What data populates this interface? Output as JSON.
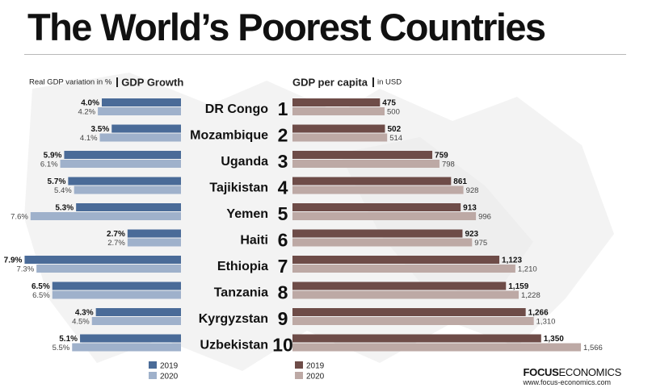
{
  "title": "The World’s Poorest Countries",
  "left_panel": {
    "note": "Real GDP variation in %",
    "header": "GDP Growth"
  },
  "right_panel": {
    "header": "GDP per capita",
    "note": "in USD"
  },
  "legend": {
    "label_2019": "2019",
    "label_2020": "2020"
  },
  "colors": {
    "growth_2019": "#4a6b98",
    "growth_2020": "#9fb1cb",
    "gdp_2019": "#6e4c48",
    "gdp_2020": "#bda9a5"
  },
  "logo": {
    "word_bold": "FOCUS",
    "word_light": "ECONOMICS",
    "url": "www.focus-economics.com"
  },
  "chart_data": [
    {
      "type": "bar",
      "title": "GDP Growth",
      "subtitle": "Real GDP variation in %",
      "categories": [
        "DR Congo",
        "Mozambique",
        "Uganda",
        "Tajikistan",
        "Yemen",
        "Haiti",
        "Ethiopia",
        "Tanzania",
        "Kyrgyzstan",
        "Uzbekistan"
      ],
      "series": [
        {
          "name": "2019",
          "values": [
            4.0,
            3.5,
            5.9,
            5.7,
            5.3,
            2.7,
            7.9,
            6.5,
            4.3,
            5.1
          ],
          "labels": [
            "4.0%",
            "3.5%",
            "5.9%",
            "5.7%",
            "5.3%",
            "2.7%",
            "7.9%",
            "6.5%",
            "4.3%",
            "5.1%"
          ]
        },
        {
          "name": "2020",
          "values": [
            4.2,
            4.1,
            6.1,
            5.4,
            7.6,
            2.7,
            7.3,
            6.5,
            4.5,
            5.5
          ],
          "labels": [
            "4.2%",
            "4.1%",
            "6.1%",
            "5.4%",
            "7.6%",
            "2.7%",
            "7.3%",
            "6.5%",
            "4.5%",
            "5.5%"
          ]
        }
      ],
      "orientation": "horizontal-leftward",
      "legend_position": "bottom-right"
    },
    {
      "type": "bar",
      "title": "GDP per capita",
      "subtitle": "in USD",
      "ranks": [
        "1",
        "2",
        "3",
        "4",
        "5",
        "6",
        "7",
        "8",
        "9",
        "10"
      ],
      "categories": [
        "DR Congo",
        "Mozambique",
        "Uganda",
        "Tajikistan",
        "Yemen",
        "Haiti",
        "Ethiopia",
        "Tanzania",
        "Kyrgyzstan",
        "Uzbekistan"
      ],
      "series": [
        {
          "name": "2019",
          "values": [
            475,
            502,
            759,
            861,
            913,
            923,
            1123,
            1159,
            1266,
            1350
          ],
          "labels": [
            "475",
            "502",
            "759",
            "861",
            "913",
            "923",
            "1,123",
            "1,159",
            "1,266",
            "1,350"
          ]
        },
        {
          "name": "2020",
          "values": [
            500,
            514,
            798,
            928,
            996,
            975,
            1210,
            1228,
            1310,
            1566
          ],
          "labels": [
            "500",
            "514",
            "798",
            "928",
            "996",
            "975",
            "1,210",
            "1,228",
            "1,310",
            "1,566"
          ]
        }
      ],
      "orientation": "horizontal",
      "legend_position": "bottom-left"
    }
  ]
}
